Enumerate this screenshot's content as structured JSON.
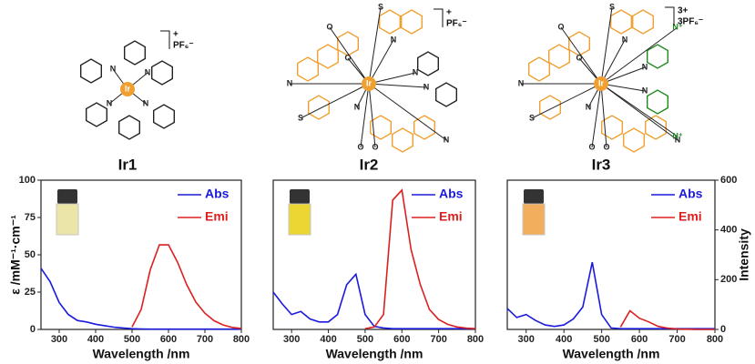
{
  "structures": [
    {
      "name": "Ir1",
      "charge": "+",
      "counterion": "PF₆⁻",
      "atoms": [
        "Ir",
        "N",
        "N",
        "N",
        "N"
      ]
    },
    {
      "name": "Ir2",
      "charge": "+",
      "counterion": "PF₆⁻",
      "atoms": [
        "Ir",
        "S",
        "N",
        "O",
        "O",
        "N",
        "S",
        "N",
        "O",
        "O",
        "N",
        "N",
        "N"
      ]
    },
    {
      "name": "Ir3",
      "charge": "3+",
      "counterion": "3PF₆⁻",
      "atoms": [
        "Ir",
        "S",
        "N",
        "O",
        "O",
        "N",
        "S",
        "N",
        "O",
        "O",
        "N",
        "N",
        "N",
        "N⁺",
        "N⁺"
      ]
    }
  ],
  "chart_data": [
    {
      "type": "line",
      "xlabel": "Wavelength /nm",
      "ylabel": "ε /mM⁻¹·cm⁻¹",
      "x": [
        250,
        275,
        300,
        325,
        350,
        375,
        400,
        425,
        450,
        475,
        500,
        525,
        550,
        575,
        600,
        625,
        650,
        675,
        700,
        725,
        750,
        775,
        800
      ],
      "xlim": [
        250,
        800
      ],
      "xticks": [
        300,
        400,
        500,
        600,
        700,
        800
      ],
      "ylim": [
        0,
        100
      ],
      "yticks": [
        0,
        25,
        50,
        75,
        100
      ],
      "y2lim": [
        0,
        600
      ],
      "series": [
        {
          "name": "Abs",
          "color": "#1a1adc",
          "axis": "y",
          "values": [
            41,
            32,
            18,
            10,
            6,
            5,
            3.5,
            2.5,
            1.5,
            1,
            0.5,
            0.3,
            0.2,
            0.2,
            0.2,
            0.2,
            0.2,
            0.2,
            0.2,
            0.2,
            0.2,
            0.2,
            0.2
          ]
        },
        {
          "name": "Emi",
          "color": "#dc2020",
          "axis": "y2",
          "values": [
            null,
            null,
            null,
            null,
            null,
            null,
            null,
            null,
            null,
            null,
            10,
            80,
            240,
            340,
            340,
            270,
            180,
            110,
            65,
            35,
            18,
            8,
            4
          ]
        }
      ]
    },
    {
      "type": "line",
      "xlabel": "Wavelength /nm",
      "x": [
        250,
        275,
        300,
        325,
        350,
        375,
        400,
        425,
        450,
        475,
        500,
        525,
        550,
        575,
        600,
        625,
        650,
        675,
        700,
        725,
        750,
        775,
        800
      ],
      "xlim": [
        250,
        800
      ],
      "xticks": [
        300,
        400,
        500,
        600,
        700,
        800
      ],
      "ylim": [
        0,
        100
      ],
      "y2lim": [
        0,
        600
      ],
      "series": [
        {
          "name": "Abs",
          "color": "#1a1adc",
          "axis": "y",
          "values": [
            25,
            17,
            10,
            12,
            7,
            5,
            5,
            10,
            30,
            37,
            10,
            2,
            1,
            0.5,
            0.5,
            0.5,
            0.5,
            0.5,
            0.5,
            0.5,
            0.5,
            0.5,
            0.5
          ]
        },
        {
          "name": "Emi",
          "color": "#dc2020",
          "axis": "y2",
          "values": [
            null,
            null,
            null,
            null,
            null,
            null,
            null,
            null,
            null,
            null,
            3,
            10,
            60,
            520,
            560,
            320,
            180,
            80,
            40,
            20,
            10,
            5,
            3
          ]
        }
      ]
    },
    {
      "type": "line",
      "xlabel": "Wavelength /nm",
      "y2label": "Intensity",
      "x": [
        250,
        275,
        300,
        325,
        350,
        375,
        400,
        425,
        450,
        475,
        500,
        525,
        550,
        575,
        600,
        625,
        650,
        675,
        700,
        725,
        750,
        775,
        800
      ],
      "xlim": [
        250,
        800
      ],
      "xticks": [
        300,
        400,
        500,
        600,
        700,
        800
      ],
      "ylim": [
        0,
        100
      ],
      "y2lim": [
        0,
        600
      ],
      "y2ticks": [
        0,
        200,
        400,
        600
      ],
      "series": [
        {
          "name": "Abs",
          "color": "#1a1adc",
          "axis": "y",
          "values": [
            14,
            8,
            10,
            6,
            3,
            2,
            3,
            7,
            15,
            45,
            10,
            1,
            0.5,
            0.5,
            0.5,
            0.5,
            0.5,
            0.5,
            0.5,
            0.5,
            0.5,
            0.5,
            0.5
          ]
        },
        {
          "name": "Emi",
          "color": "#dc2020",
          "axis": "y2",
          "values": [
            null,
            null,
            null,
            null,
            null,
            null,
            null,
            null,
            null,
            null,
            null,
            null,
            10,
            75,
            45,
            30,
            12,
            5,
            2,
            1,
            0,
            0,
            0
          ]
        }
      ]
    }
  ]
}
